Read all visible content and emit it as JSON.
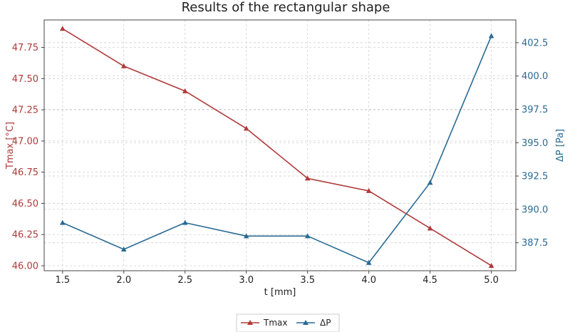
{
  "chart_data": {
    "type": "line",
    "title": "Results of the rectangular shape",
    "xlabel": "t [mm]",
    "x": [
      1.5,
      2.0,
      2.5,
      3.0,
      3.5,
      4.0,
      4.5,
      5.0
    ],
    "x_ticks": [
      "1.5",
      "2.0",
      "2.5",
      "3.0",
      "3.5",
      "4.0",
      "4.5",
      "5.0"
    ],
    "xlim": [
      1.35,
      5.2
    ],
    "y_left": {
      "label": "Tmax [°C]",
      "ylim": [
        45.96,
        47.97
      ],
      "ticks": [
        "46.00",
        "46.25",
        "46.50",
        "46.75",
        "47.00",
        "47.25",
        "47.50",
        "47.75"
      ],
      "tick_values": [
        46.0,
        46.25,
        46.5,
        46.75,
        47.0,
        47.25,
        47.5,
        47.75
      ],
      "color": "#b03a3a"
    },
    "y_right": {
      "label": "ΔP [Pa]",
      "ylim": [
        385.4,
        404.2
      ],
      "ticks": [
        "387.5",
        "390.0",
        "392.5",
        "395.0",
        "397.5",
        "400.0",
        "402.5"
      ],
      "tick_values": [
        387.5,
        390.0,
        392.5,
        395.0,
        397.5,
        400.0,
        402.5
      ],
      "color": "#2a6a93"
    },
    "series": [
      {
        "name": "Tmax",
        "axis": "left",
        "color": "#b03a3a",
        "marker": "triangle",
        "values": [
          47.9,
          47.6,
          47.4,
          47.1,
          46.7,
          46.6,
          46.3,
          46.0
        ]
      },
      {
        "name": "ΔP",
        "axis": "right",
        "color": "#2a6a93",
        "marker": "triangle",
        "values": [
          389,
          387,
          389,
          388,
          388,
          386,
          392,
          403
        ]
      }
    ],
    "grid": true,
    "legend_position": "bottom-center"
  }
}
